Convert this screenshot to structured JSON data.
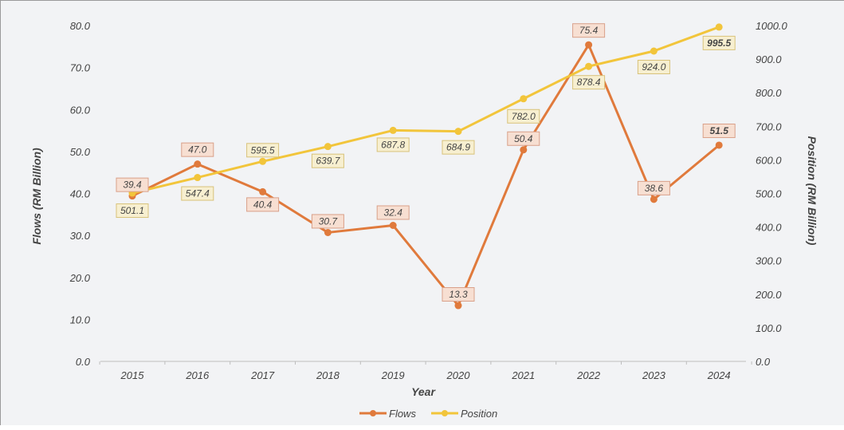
{
  "chart_data": {
    "type": "line",
    "title": "",
    "xlabel": "Year",
    "ylabel_left": "Flows (RM Billion)",
    "ylabel_right": "Position (RM Billion)",
    "x": [
      "2015",
      "2016",
      "2017",
      "2018",
      "2019",
      "2020",
      "2021",
      "2022",
      "2023",
      "2024"
    ],
    "y_left_ticks": [
      "0.0",
      "10.0",
      "20.0",
      "30.0",
      "40.0",
      "50.0",
      "60.0",
      "70.0",
      "80.0"
    ],
    "y_right_ticks": [
      "0.0",
      "100.0",
      "200.0",
      "300.0",
      "400.0",
      "500.0",
      "600.0",
      "700.0",
      "800.0",
      "900.0",
      "1000.0"
    ],
    "ylim_left": [
      0,
      80
    ],
    "ylim_right": [
      0,
      1000
    ],
    "grid": false,
    "legend_position": "bottom",
    "series": [
      {
        "name": "Flows",
        "axis": "left",
        "color": "#e07a3c",
        "label_fill": "#f7dfd2",
        "label_stroke": "#d9a089",
        "values": [
          39.4,
          47.0,
          40.4,
          30.7,
          32.4,
          13.3,
          50.4,
          75.4,
          38.6,
          51.5
        ],
        "labels": [
          "39.4",
          "47.0",
          "40.4",
          "30.7",
          "32.4",
          "13.3",
          "50.4",
          "75.4",
          "38.6",
          "51.5"
        ]
      },
      {
        "name": "Position",
        "axis": "right",
        "color": "#f2c53b",
        "label_fill": "#f7efd0",
        "label_stroke": "#d8c27a",
        "values": [
          501.1,
          547.4,
          595.5,
          639.7,
          687.8,
          684.9,
          782.0,
          878.4,
          924.0,
          995.5
        ],
        "labels": [
          "501.1",
          "547.4",
          "595.5",
          "639.7",
          "687.8",
          "684.9",
          "782.0",
          "878.4",
          "924.0",
          "995.5"
        ]
      }
    ]
  }
}
